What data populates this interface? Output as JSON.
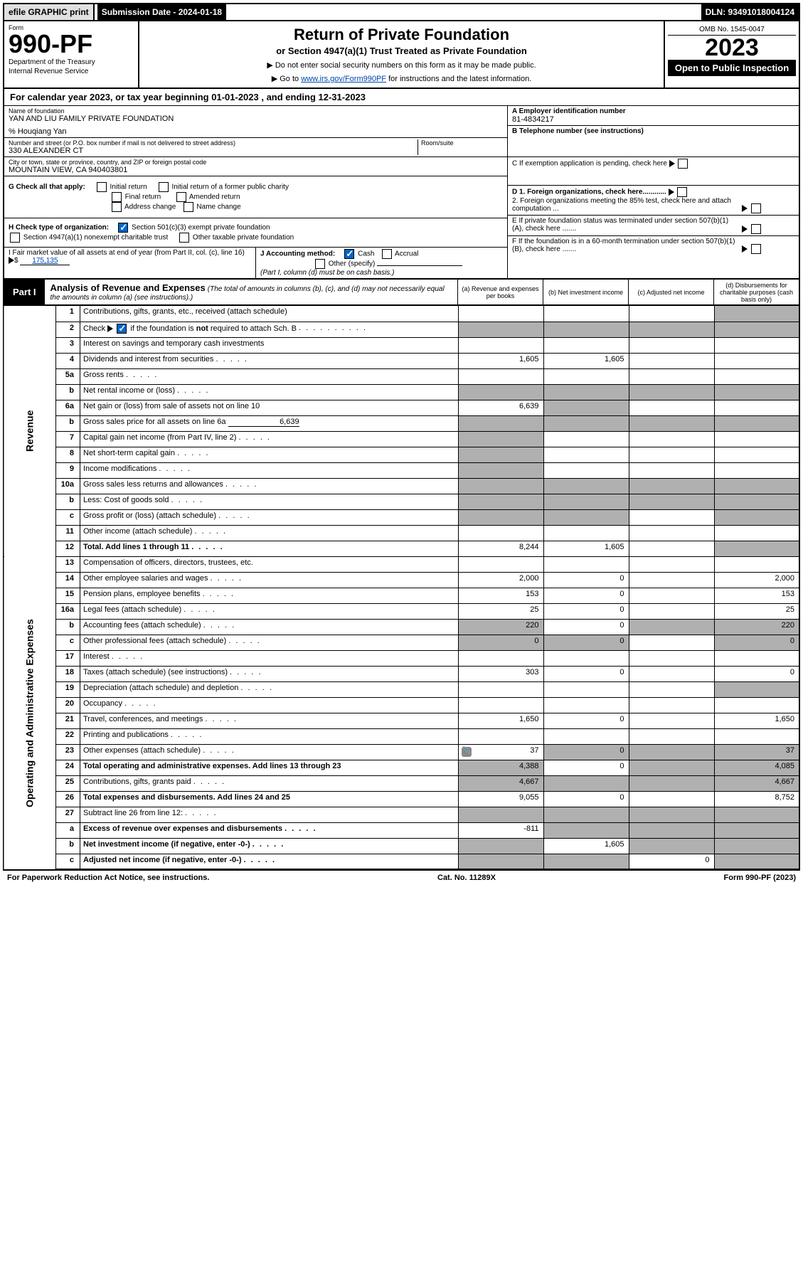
{
  "topbar": {
    "efile": "efile GRAPHIC print",
    "submission": "Submission Date - 2024-01-18",
    "dln": "DLN: 93491018004124"
  },
  "header": {
    "form_label": "Form",
    "form_num": "990-PF",
    "dept1": "Department of the Treasury",
    "dept2": "Internal Revenue Service",
    "title": "Return of Private Foundation",
    "subtitle": "or Section 4947(a)(1) Trust Treated as Private Foundation",
    "instr1": "▶ Do not enter social security numbers on this form as it may be made public.",
    "instr2_pre": "▶ Go to ",
    "instr2_link": "www.irs.gov/Form990PF",
    "instr2_post": " for instructions and the latest information.",
    "omb": "OMB No. 1545-0047",
    "year": "2023",
    "open": "Open to Public Inspection"
  },
  "calyear": {
    "pre": "For calendar year 2023, or tax year beginning ",
    "b1": "01-01-2023",
    "mid": " , and ending ",
    "b2": "12-31-2023"
  },
  "info": {
    "name_lbl": "Name of foundation",
    "name": "YAN AND LIU FAMILY PRIVATE FOUNDATION",
    "care": "% Houqiang Yan",
    "addr_lbl": "Number and street (or P.O. box number if mail is not delivered to street address)",
    "addr": "330 ALEXANDER CT",
    "room_lbl": "Room/suite",
    "city_lbl": "City or town, state or province, country, and ZIP or foreign postal code",
    "city": "MOUNTAIN VIEW, CA  940403801",
    "a_lbl": "A Employer identification number",
    "a_val": "81-4834217",
    "b_lbl": "B Telephone number (see instructions)",
    "c_lbl": "C If exemption application is pending, check here",
    "d1_lbl": "D 1. Foreign organizations, check here............",
    "d2_lbl": "2. Foreign organizations meeting the 85% test, check here and attach computation ...",
    "e_lbl": "E  If private foundation status was terminated under section 507(b)(1)(A), check here .......",
    "f_lbl": "F  If the foundation is in a 60-month termination under section 507(b)(1)(B), check here .......",
    "g_lbl": "G Check all that apply:",
    "g_opts": [
      "Initial return",
      "Initial return of a former public charity",
      "Final return",
      "Amended return",
      "Address change",
      "Name change"
    ],
    "h_lbl": "H Check type of organization:",
    "h1": "Section 501(c)(3) exempt private foundation",
    "h2": "Section 4947(a)(1) nonexempt charitable trust",
    "h3": "Other taxable private foundation",
    "i_lbl": "I Fair market value of all assets at end of year (from Part II, col. (c), line 16)",
    "i_val": "175,135",
    "j_lbl": "J Accounting method:",
    "j_cash": "Cash",
    "j_acc": "Accrual",
    "j_other": "Other (specify)",
    "j_note": "(Part I, column (d) must be on cash basis.)"
  },
  "part1": {
    "tab": "Part I",
    "title": "Analysis of Revenue and Expenses",
    "note": "(The total of amounts in columns (b), (c), and (d) may not necessarily equal the amounts in column (a) (see instructions).)",
    "col_a": "(a)  Revenue and expenses per books",
    "col_b": "(b)  Net investment income",
    "col_c": "(c)  Adjusted net income",
    "col_d": "(d)  Disbursements for charitable purposes (cash basis only)"
  },
  "sides": {
    "rev": "Revenue",
    "exp": "Operating and Administrative Expenses"
  },
  "rows": [
    {
      "n": "1",
      "d": "Contributions, gifts, grants, etc., received (attach schedule)"
    },
    {
      "n": "2",
      "d": "Check ▶ [x] if the foundation is not required to attach Sch. B"
    },
    {
      "n": "3",
      "d": "Interest on savings and temporary cash investments"
    },
    {
      "n": "4",
      "d": "Dividends and interest from securities",
      "a": "1,605",
      "b": "1,605"
    },
    {
      "n": "5a",
      "d": "Gross rents"
    },
    {
      "n": "b",
      "d": "Net rental income or (loss)"
    },
    {
      "n": "6a",
      "d": "Net gain or (loss) from sale of assets not on line 10",
      "a": "6,639"
    },
    {
      "n": "b",
      "d": "Gross sales price for all assets on line 6a",
      "inline": "6,639"
    },
    {
      "n": "7",
      "d": "Capital gain net income (from Part IV, line 2)"
    },
    {
      "n": "8",
      "d": "Net short-term capital gain"
    },
    {
      "n": "9",
      "d": "Income modifications"
    },
    {
      "n": "10a",
      "d": "Gross sales less returns and allowances"
    },
    {
      "n": "b",
      "d": "Less: Cost of goods sold"
    },
    {
      "n": "c",
      "d": "Gross profit or (loss) (attach schedule)"
    },
    {
      "n": "11",
      "d": "Other income (attach schedule)"
    },
    {
      "n": "12",
      "d": "Total. Add lines 1 through 11",
      "a": "8,244",
      "b": "1,605",
      "bold": true
    },
    {
      "n": "13",
      "d": "Compensation of officers, directors, trustees, etc."
    },
    {
      "n": "14",
      "d": "Other employee salaries and wages",
      "a": "2,000",
      "b": "0",
      "dv": "2,000"
    },
    {
      "n": "15",
      "d": "Pension plans, employee benefits",
      "a": "153",
      "b": "0",
      "dv": "153"
    },
    {
      "n": "16a",
      "d": "Legal fees (attach schedule)",
      "a": "25",
      "b": "0",
      "dv": "25"
    },
    {
      "n": "b",
      "d": "Accounting fees (attach schedule)",
      "a": "220",
      "b": "0",
      "dv": "220"
    },
    {
      "n": "c",
      "d": "Other professional fees (attach schedule)",
      "a": "0",
      "b": "0",
      "dv": "0"
    },
    {
      "n": "17",
      "d": "Interest"
    },
    {
      "n": "18",
      "d": "Taxes (attach schedule) (see instructions)",
      "a": "303",
      "b": "0",
      "dv": "0"
    },
    {
      "n": "19",
      "d": "Depreciation (attach schedule) and depletion"
    },
    {
      "n": "20",
      "d": "Occupancy"
    },
    {
      "n": "21",
      "d": "Travel, conferences, and meetings",
      "a": "1,650",
      "b": "0",
      "dv": "1,650"
    },
    {
      "n": "22",
      "d": "Printing and publications"
    },
    {
      "n": "23",
      "d": "Other expenses (attach schedule)",
      "a": "37",
      "b": "0",
      "dv": "37",
      "icon": true
    },
    {
      "n": "24",
      "d": "Total operating and administrative expenses. Add lines 13 through 23",
      "a": "4,388",
      "b": "0",
      "dv": "4,085",
      "bold": true
    },
    {
      "n": "25",
      "d": "Contributions, gifts, grants paid",
      "a": "4,667",
      "dv": "4,667"
    },
    {
      "n": "26",
      "d": "Total expenses and disbursements. Add lines 24 and 25",
      "a": "9,055",
      "b": "0",
      "dv": "8,752",
      "bold": true
    },
    {
      "n": "27",
      "d": "Subtract line 26 from line 12:"
    },
    {
      "n": "a",
      "d": "Excess of revenue over expenses and disbursements",
      "a": "-811",
      "bold": true
    },
    {
      "n": "b",
      "d": "Net investment income (if negative, enter -0-)",
      "b": "1,605",
      "bold": true
    },
    {
      "n": "c",
      "d": "Adjusted net income (if negative, enter -0-)",
      "c": "0",
      "bold": true
    }
  ],
  "grey_cells": {
    "1": [
      "d"
    ],
    "2": [
      "a",
      "b",
      "c",
      "d"
    ],
    "5b": [
      "a",
      "b",
      "c",
      "d"
    ],
    "6a": [
      "b"
    ],
    "6b": [
      "a",
      "b",
      "c",
      "d"
    ],
    "7": [
      "a"
    ],
    "8": [
      "a"
    ],
    "9": [
      "a"
    ],
    "10a": [
      "a",
      "b",
      "c",
      "d"
    ],
    "10b": [
      "a",
      "b",
      "c",
      "d"
    ],
    "12": [
      "d"
    ],
    "19": [
      "d"
    ],
    "25": [
      "b",
      "c"
    ],
    "27": [
      "a",
      "b",
      "c",
      "d"
    ],
    "27a": [
      "b",
      "c",
      "d"
    ],
    "27b": [
      "a",
      "c",
      "d"
    ],
    "27c": [
      "a",
      "b",
      "d"
    ]
  },
  "footer": {
    "left": "For Paperwork Reduction Act Notice, see instructions.",
    "mid": "Cat. No. 11289X",
    "right": "Form 990-PF (2023)"
  },
  "colors": {
    "link": "#0047ab",
    "grey": "#b0b0b0",
    "black": "#000000"
  }
}
